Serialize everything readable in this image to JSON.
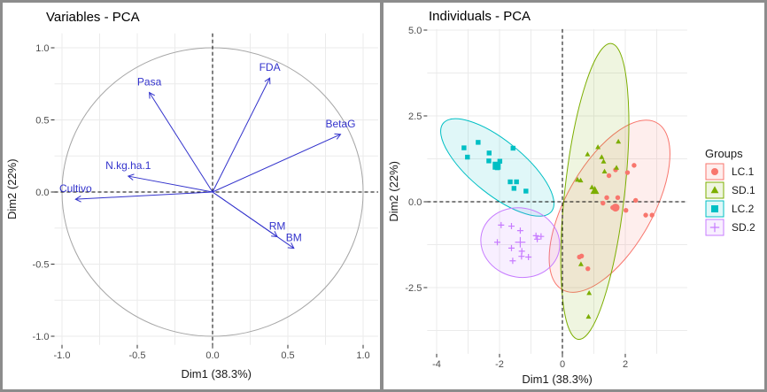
{
  "chart_data": [
    {
      "type": "scatter",
      "title": "Variables - PCA",
      "xlabel": "Dim1 (38.3%)",
      "ylabel": "Dim2 (22%)",
      "xlim": [
        -1.05,
        1.1
      ],
      "ylim": [
        -1.06,
        1.1
      ],
      "xticks": [
        "-1.0",
        "-0.5",
        "0.0",
        "0.5",
        "1.0"
      ],
      "xtick_values": [
        -1,
        -0.5,
        0,
        0.5,
        1
      ],
      "yticks": [
        "1.0",
        "0.5",
        "0.0",
        "-0.5",
        "-1.0"
      ],
      "ytick_values": [
        1,
        0.5,
        0,
        -0.5,
        -1
      ],
      "grid": true,
      "correlation_circle": true,
      "arrow_color": "#3333cc",
      "variables": [
        {
          "name": "Pasa",
          "x": -0.42,
          "y": 0.69
        },
        {
          "name": "FDA",
          "x": 0.38,
          "y": 0.79
        },
        {
          "name": "BetaG",
          "x": 0.85,
          "y": 0.4
        },
        {
          "name": "N.kg.ha.1",
          "x": -0.56,
          "y": 0.11
        },
        {
          "name": "Cultivo",
          "x": -0.91,
          "y": -0.05
        },
        {
          "name": "RM",
          "x": 0.43,
          "y": -0.31
        },
        {
          "name": "BM",
          "x": 0.54,
          "y": -0.39
        }
      ]
    },
    {
      "type": "scatter",
      "title": "Individuals - PCA",
      "xlabel": "Dim1 (38.3%)",
      "ylabel": "Dim2 (22%)",
      "xlim": [
        -4.3,
        3.97
      ],
      "ylim": [
        -4.43,
        5.03
      ],
      "xticks": [
        "-4",
        "-2",
        "0",
        "2"
      ],
      "xtick_values": [
        -4,
        -2,
        0,
        2
      ],
      "yticks": [
        "5.0",
        "2.5",
        "0.0",
        "-2.5"
      ],
      "ytick_values": [
        5,
        2.5,
        0,
        -2.5
      ],
      "grid": true,
      "legend_title": "Groups",
      "legend_position": "right",
      "series": [
        {
          "name": "LC.1",
          "color": "#F8766D",
          "marker": "circle",
          "mean": [
            1.69,
            -0.17
          ],
          "ellipse": {
            "center": [
              1.5,
              -0.13
            ],
            "a": 2.86,
            "b": 1.34,
            "angle_deg": 57
          },
          "points": [
            [
              2.28,
              1.06
            ],
            [
              2.07,
              0.85
            ],
            [
              1.69,
              0.93
            ],
            [
              1.48,
              0.76
            ],
            [
              1.41,
              0.12
            ],
            [
              1.76,
              0.12
            ],
            [
              1.29,
              -0.04
            ],
            [
              1.6,
              -0.17
            ],
            [
              2.02,
              -0.25
            ],
            [
              2.33,
              0.04
            ],
            [
              2.65,
              -0.39
            ],
            [
              2.85,
              -0.39
            ],
            [
              0.54,
              -1.61
            ],
            [
              0.61,
              -1.58
            ],
            [
              0.81,
              -1.95
            ]
          ]
        },
        {
          "name": "SD.1",
          "color": "#7CAE00",
          "marker": "triangle",
          "mean": [
            1.03,
            0.32
          ],
          "ellipse": {
            "center": [
              1.03,
              0.3
            ],
            "a": 4.34,
            "b": 0.95,
            "angle_deg": 83
          },
          "points": [
            [
              1.13,
              1.59
            ],
            [
              1.78,
              1.75
            ],
            [
              0.8,
              1.38
            ],
            [
              1.25,
              1.3
            ],
            [
              1.31,
              1.17
            ],
            [
              1.72,
              0.99
            ],
            [
              1.34,
              0.88
            ],
            [
              0.48,
              0.64
            ],
            [
              0.58,
              0.62
            ],
            [
              0.94,
              0.42
            ],
            [
              0.59,
              -1.82
            ],
            [
              0.85,
              -2.66
            ],
            [
              0.83,
              -3.35
            ]
          ]
        },
        {
          "name": "LC.2",
          "color": "#00BFC4",
          "marker": "square",
          "mean": [
            -2.09,
            1.05
          ],
          "ellipse": {
            "center": [
              -2.07,
              1.0
            ],
            "a": 2.15,
            "b": 0.8,
            "angle_deg": -36
          },
          "points": [
            [
              -3.13,
              1.57
            ],
            [
              -3.02,
              1.3
            ],
            [
              -2.68,
              1.73
            ],
            [
              -2.33,
              1.42
            ],
            [
              -2.34,
              1.19
            ],
            [
              -2.13,
              1.07
            ],
            [
              -2.07,
              0.99
            ],
            [
              -1.99,
              1.18
            ],
            [
              -1.57,
              1.56
            ],
            [
              -1.66,
              0.58
            ],
            [
              -1.46,
              0.58
            ],
            [
              -1.54,
              0.39
            ],
            [
              -1.16,
              0.31
            ]
          ]
        },
        {
          "name": "SD.2",
          "color": "#C77CFF",
          "marker": "plus",
          "mean": [
            -1.34,
            -1.18
          ],
          "ellipse": {
            "center": [
              -1.34,
              -1.19
            ],
            "a": 1.26,
            "b": 1.01,
            "angle_deg": -8
          },
          "points": [
            [
              -1.95,
              -0.68
            ],
            [
              -1.62,
              -0.71
            ],
            [
              -1.34,
              -0.84
            ],
            [
              -2.07,
              -1.18
            ],
            [
              -1.62,
              -1.35
            ],
            [
              -1.29,
              -1.44
            ],
            [
              -1.58,
              -1.72
            ],
            [
              -1.3,
              -1.59
            ],
            [
              -1.08,
              -1.61
            ],
            [
              -0.84,
              -0.99
            ],
            [
              -0.68,
              -1.01
            ],
            [
              -0.8,
              -1.09
            ]
          ]
        }
      ]
    }
  ]
}
